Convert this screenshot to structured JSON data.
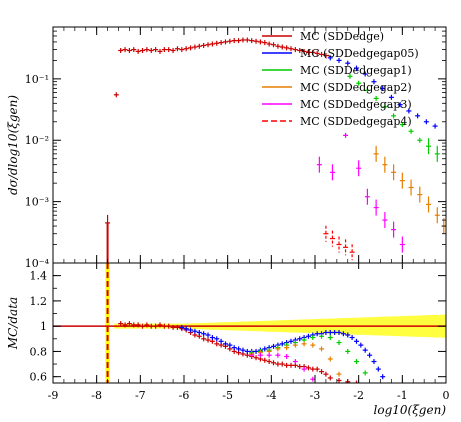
{
  "chart_data": [
    {
      "type": "scatter",
      "panel": "main",
      "ylabel": "dσ/dlog10(ξgen)",
      "y_scale": "log",
      "ylim": [
        0.0001,
        0.7
      ],
      "xlim": [
        -9,
        0
      ],
      "y_ticks": [
        {
          "value": 0.0001,
          "label": "10⁻⁴"
        },
        {
          "value": 0.001,
          "label": "10⁻³"
        },
        {
          "value": 0.01,
          "label": "10⁻²"
        },
        {
          "value": 0.1,
          "label": "10⁻¹"
        }
      ],
      "legend": {
        "placement": "top-right",
        "entries": [
          {
            "name": "MC (SDDedge)",
            "color": "#cc0000",
            "style": "solid"
          },
          {
            "name": "MC (SDDedgegap05)",
            "color": "#0000ff",
            "style": "solid"
          },
          {
            "name": "MC (SDDedgegap1)",
            "color": "#00cc00",
            "style": "solid"
          },
          {
            "name": "MC (SDDedgegap2)",
            "color": "#e67e00",
            "style": "solid"
          },
          {
            "name": "MC (SDDedgegap3)",
            "color": "#ff00ff",
            "style": "solid"
          },
          {
            "name": "MC (SDDedgegap4)",
            "color": "#ff0000",
            "style": "dashed"
          }
        ]
      },
      "series": [
        {
          "name": "MC (SDDedge)",
          "color": "#cc0000",
          "x": [
            -7.75,
            -7.55,
            -7.45,
            -7.35,
            -7.25,
            -7.15,
            -7.05,
            -6.95,
            -6.85,
            -6.75,
            -6.65,
            -6.55,
            -6.45,
            -6.35,
            -6.25,
            -6.15,
            -6.05,
            -5.95,
            -5.85,
            -5.75,
            -5.65,
            -5.55,
            -5.45,
            -5.35,
            -5.25,
            -5.15,
            -5.05,
            -4.95,
            -4.85,
            -4.75,
            -4.65,
            -4.55,
            -4.45,
            -4.35,
            -4.25,
            -4.15,
            -4.05,
            -3.95,
            -3.85,
            -3.75,
            -3.65,
            -3.55,
            -3.45,
            -3.35,
            -3.25,
            -3.15,
            -3.05,
            -2.95,
            -2.85,
            -2.75
          ],
          "y": [
            0.00045,
            0.055,
            0.29,
            0.3,
            0.29,
            0.3,
            0.28,
            0.29,
            0.3,
            0.29,
            0.3,
            0.28,
            0.3,
            0.3,
            0.29,
            0.31,
            0.3,
            0.31,
            0.32,
            0.33,
            0.34,
            0.35,
            0.36,
            0.37,
            0.38,
            0.39,
            0.4,
            0.41,
            0.42,
            0.42,
            0.43,
            0.43,
            0.42,
            0.41,
            0.4,
            0.39,
            0.37,
            0.36,
            0.34,
            0.33,
            0.32,
            0.31,
            0.3,
            0.29,
            0.28,
            0.27,
            0.27,
            0.26,
            0.25,
            0.24
          ]
        },
        {
          "name": "MC (SDDedgegap05)",
          "color": "#0000ff",
          "x": [
            -2.65,
            -2.45,
            -2.25,
            -2.05,
            -1.85,
            -1.65,
            -1.45,
            -1.25,
            -1.05,
            -0.85,
            -0.65,
            -0.45,
            -0.25
          ],
          "y": [
            0.22,
            0.2,
            0.18,
            0.15,
            0.12,
            0.09,
            0.07,
            0.05,
            0.038,
            0.03,
            0.025,
            0.02,
            0.017
          ]
        },
        {
          "name": "MC (SDDedgegap1)",
          "color": "#00cc00",
          "x": [
            -2.2,
            -2.0,
            -1.8,
            -1.6,
            -1.4,
            -1.2,
            -1.0,
            -0.8,
            -0.6,
            -0.4,
            -0.2
          ],
          "y": [
            0.11,
            0.085,
            0.065,
            0.048,
            0.035,
            0.025,
            0.018,
            0.014,
            0.01,
            0.008,
            0.006
          ]
        },
        {
          "name": "MC (SDDedgegap2)",
          "color": "#e67e00",
          "x": [
            -1.6,
            -1.4,
            -1.2,
            -1.0,
            -0.8,
            -0.6,
            -0.4,
            -0.2,
            -0.05
          ],
          "y": [
            0.006,
            0.004,
            0.003,
            0.0022,
            0.0017,
            0.0013,
            0.0009,
            0.0006,
            0.0004
          ]
        },
        {
          "name": "MC (SDDedgegap3)",
          "color": "#ff00ff",
          "x": [
            -2.9,
            -2.6,
            -2.3,
            -2.0,
            -1.8,
            -1.6,
            -1.4,
            -1.2,
            -1.0
          ],
          "y": [
            0.004,
            0.003,
            0.012,
            0.0035,
            0.0012,
            0.0008,
            0.0005,
            0.00035,
            0.0002
          ]
        },
        {
          "name": "MC (SDDedgegap4)",
          "color": "#ff0000",
          "x": [
            -2.75,
            -2.6,
            -2.45,
            -2.3,
            -2.15
          ],
          "y": [
            0.0003,
            0.00025,
            0.0002,
            0.00018,
            0.00015
          ]
        }
      ]
    },
    {
      "type": "scatter",
      "panel": "ratio",
      "ylabel": "MC/data",
      "xlabel": "log10(ξgen)",
      "ylim": [
        0.55,
        1.5
      ],
      "xlim": [
        -9,
        0
      ],
      "y_ticks": [
        {
          "value": 0.6,
          "label": "0.6"
        },
        {
          "value": 0.8,
          "label": "0.8"
        },
        {
          "value": 1.0,
          "label": "1"
        },
        {
          "value": 1.2,
          "label": "1.2"
        },
        {
          "value": 1.4,
          "label": "1.4"
        }
      ],
      "x_ticks": [
        {
          "value": -9,
          "label": "-9"
        },
        {
          "value": -8,
          "label": "-8"
        },
        {
          "value": -7,
          "label": "-7"
        },
        {
          "value": -6,
          "label": "-6"
        },
        {
          "value": -5,
          "label": "-5"
        },
        {
          "value": -4,
          "label": "-4"
        },
        {
          "value": -3,
          "label": "-3"
        },
        {
          "value": -2,
          "label": "-2"
        },
        {
          "value": -1,
          "label": "-1"
        },
        {
          "value": 0,
          "label": "0"
        }
      ],
      "series": [
        {
          "name": "MC (SDDedge)",
          "color": "#cc0000",
          "x": [
            -7.45,
            -7.35,
            -7.25,
            -7.15,
            -7.05,
            -6.95,
            -6.85,
            -6.75,
            -6.65,
            -6.55,
            -6.45,
            -6.35,
            -6.25,
            -6.15,
            -6.05,
            -5.95,
            -5.85,
            -5.75,
            -5.65,
            -5.55,
            -5.45,
            -5.35,
            -5.25,
            -5.15,
            -5.05,
            -4.95,
            -4.85,
            -4.75,
            -4.65,
            -4.55,
            -4.45,
            -4.35,
            -4.25,
            -4.15,
            -4.05,
            -3.95,
            -3.85,
            -3.75,
            -3.65,
            -3.55,
            -3.45,
            -3.35,
            -3.25,
            -3.15,
            -3.05,
            -2.95,
            -2.85,
            -2.75,
            -2.65,
            -2.45,
            -2.25,
            -2.05
          ],
          "y": [
            1.02,
            1.01,
            1.02,
            1.01,
            1.01,
            1.0,
            1.01,
            1.0,
            1.0,
            1.01,
            1.0,
            1.0,
            0.99,
            0.99,
            0.98,
            0.97,
            0.95,
            0.93,
            0.92,
            0.9,
            0.89,
            0.88,
            0.86,
            0.85,
            0.84,
            0.82,
            0.8,
            0.79,
            0.78,
            0.77,
            0.76,
            0.75,
            0.74,
            0.73,
            0.72,
            0.71,
            0.7,
            0.7,
            0.69,
            0.69,
            0.69,
            0.68,
            0.68,
            0.67,
            0.66,
            0.66,
            0.64,
            0.62,
            0.59,
            0.57,
            0.56,
            0.55
          ]
        },
        {
          "name": "MC (SDDedgegap05)",
          "color": "#0000ff",
          "x": [
            -6.05,
            -5.95,
            -5.85,
            -5.75,
            -5.65,
            -5.55,
            -5.45,
            -5.35,
            -5.25,
            -5.15,
            -5.05,
            -4.95,
            -4.85,
            -4.75,
            -4.65,
            -4.55,
            -4.45,
            -4.35,
            -4.25,
            -4.15,
            -4.05,
            -3.95,
            -3.85,
            -3.75,
            -3.65,
            -3.55,
            -3.45,
            -3.35,
            -3.25,
            -3.15,
            -3.05,
            -2.95,
            -2.85,
            -2.75,
            -2.65,
            -2.55,
            -2.45,
            -2.35,
            -2.25,
            -2.15,
            -2.05,
            -1.95,
            -1.85,
            -1.75,
            -1.65,
            -1.55,
            -1.45
          ],
          "y": [
            0.99,
            0.98,
            0.97,
            0.96,
            0.95,
            0.94,
            0.93,
            0.91,
            0.9,
            0.88,
            0.86,
            0.85,
            0.83,
            0.82,
            0.81,
            0.8,
            0.8,
            0.8,
            0.81,
            0.82,
            0.83,
            0.84,
            0.85,
            0.86,
            0.87,
            0.88,
            0.89,
            0.9,
            0.91,
            0.92,
            0.93,
            0.94,
            0.94,
            0.95,
            0.95,
            0.95,
            0.95,
            0.94,
            0.93,
            0.91,
            0.88,
            0.85,
            0.81,
            0.77,
            0.72,
            0.66,
            0.6
          ]
        },
        {
          "name": "MC (SDDedgegap1)",
          "color": "#00cc00",
          "x": [
            -4.45,
            -4.25,
            -4.05,
            -3.85,
            -3.65,
            -3.45,
            -3.25,
            -3.05,
            -2.85,
            -2.65,
            -2.45,
            -2.25,
            -2.05,
            -1.85
          ],
          "y": [
            0.79,
            0.8,
            0.81,
            0.83,
            0.85,
            0.87,
            0.89,
            0.91,
            0.92,
            0.91,
            0.87,
            0.8,
            0.72,
            0.63
          ]
        },
        {
          "name": "MC (SDDedgegap2)",
          "color": "#e67e00",
          "x": [
            -4.45,
            -4.25,
            -4.05,
            -3.85,
            -3.65,
            -3.45,
            -3.25,
            -3.05,
            -2.85,
            -2.65,
            -2.45
          ],
          "y": [
            0.78,
            0.79,
            0.8,
            0.82,
            0.83,
            0.85,
            0.86,
            0.85,
            0.82,
            0.74,
            0.62
          ]
        },
        {
          "name": "MC (SDDedgegap3)",
          "color": "#ff00ff",
          "x": [
            -4.45,
            -4.25,
            -4.05,
            -3.85,
            -3.65,
            -3.45,
            -3.25,
            -3.05
          ],
          "y": [
            0.77,
            0.77,
            0.77,
            0.77,
            0.76,
            0.72,
            0.66,
            0.58
          ]
        }
      ]
    }
  ]
}
